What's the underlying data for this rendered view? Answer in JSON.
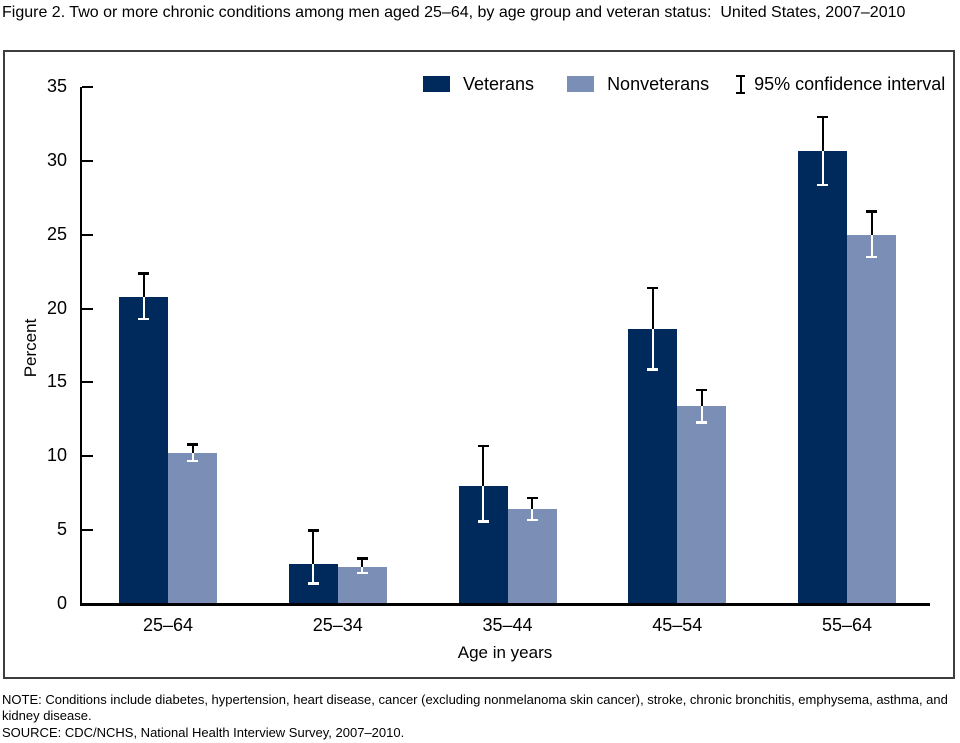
{
  "title": "Figure 2. Two or more chronic conditions among men aged 25–64, by age group and veteran status:  United States, 2007–2010",
  "note": "NOTE: Conditions include diabetes, hypertension, heart disease, cancer (excluding nonmelanoma skin cancer), stroke, chronic bronchitis, emphysema, asthma, and kidney disease.",
  "source": "SOURCE: CDC/NCHS, National Health Interview Survey, 2007–2010.",
  "chart_data": {
    "type": "bar",
    "title": "Two or more chronic conditions among men aged 25–64, by age group and veteran status: United States, 2007–2010",
    "xlabel": "Age in years",
    "ylabel": "Percent",
    "ylim": [
      0,
      35
    ],
    "yticks": [
      0,
      5,
      10,
      15,
      20,
      25,
      30,
      35
    ],
    "grid": false,
    "legend_position": "top",
    "ci_label": "95% confidence interval",
    "categories": [
      "25–64",
      "25–34",
      "35–44",
      "45–54",
      "55–64"
    ],
    "series": [
      {
        "name": "Veterans",
        "color": "#002a5c",
        "values": [
          20.8,
          2.7,
          8.0,
          18.6,
          30.7
        ],
        "ci_low": [
          19.3,
          1.4,
          5.6,
          15.9,
          28.4
        ],
        "ci_high": [
          22.4,
          5.0,
          10.7,
          21.4,
          33.0
        ]
      },
      {
        "name": "Nonveterans",
        "color": "#7b8eb5",
        "values": [
          10.2,
          2.5,
          6.4,
          13.4,
          25.0
        ],
        "ci_low": [
          9.7,
          2.1,
          5.7,
          12.3,
          23.5
        ],
        "ci_high": [
          10.8,
          3.1,
          7.2,
          14.5,
          26.6
        ]
      }
    ]
  }
}
